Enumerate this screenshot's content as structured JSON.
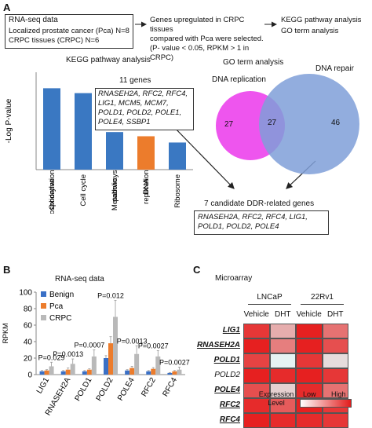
{
  "panels": {
    "a": "A",
    "b": "B",
    "c": "C"
  },
  "workflow": {
    "box1_title": "RNA-seq data",
    "box1_line2": "Localized prostate cancer (Pca) N=8",
    "box1_line3": "CRPC tissues (CRPC)  N=6",
    "step2_line1": "Genes upregulated in CRPC tissues",
    "step2_line2": "compared with Pca were selected.",
    "step2_line3": "(P- value < 0.05, RPKM > 1 in CRPC)",
    "step3_line1": "KEGG pathway analysis",
    "step3_line2": "GO term analysis"
  },
  "kegg_title": "KEGG pathway analysis",
  "genes_label": "11 genes",
  "genes_box": [
    "RNASEH2A, RFC2, RFC4,",
    "LIG1, MCM5, MCM7,",
    "POLD1, POLD2, POLE1,",
    "POLE4, SSBP1"
  ],
  "go_title": "GO term analysis",
  "venn": {
    "left_label": "DNA replication",
    "right_label": "DNA repair",
    "left_only": "27",
    "overlap": "27",
    "right_only": "46",
    "left_color": "#ee55ee",
    "right_color": "#7f9fd8"
  },
  "candidate_label": "7 candidate DDR-related genes",
  "candidate_box": [
    "RNASEH2A, RFC2, RFC4, LIG1,",
    "POLD1, POLD2, POLE4"
  ],
  "chart_data": [
    {
      "type": "bar",
      "panel": "A",
      "ylabel": "-Log P-value",
      "ylim": [
        0,
        14
      ],
      "categories": [
        "Oxidative phosphorylation",
        "Cell cycle",
        "Metabolic pathways",
        "DNA replication",
        "Ribosome"
      ],
      "values": [
        11.7,
        11.0,
        5.4,
        4.8,
        3.9
      ],
      "colors": [
        "#3a78c2",
        "#3a78c2",
        "#3a78c2",
        "#ec7c2c",
        "#3a78c2"
      ]
    },
    {
      "type": "bar",
      "panel": "B",
      "title": "RNA-seq data",
      "ylabel": "RPKM",
      "ylim": [
        0,
        100
      ],
      "yticks": [
        0,
        20,
        40,
        60,
        80,
        100
      ],
      "categories": [
        "LIG1",
        "RNASEH2A",
        "POLD1",
        "POLD2",
        "POLE4",
        "RFC2",
        "RFC4"
      ],
      "series": [
        {
          "name": "Benign",
          "color": "#3a70c6",
          "values": [
            4,
            4,
            4,
            20,
            5,
            4,
            2
          ],
          "errors": [
            1,
            1,
            1,
            3,
            1,
            1,
            0.5
          ]
        },
        {
          "name": "Pca",
          "color": "#ec7c2c",
          "values": [
            5,
            6,
            6,
            38,
            8,
            7,
            4
          ],
          "errors": [
            1,
            2,
            1,
            8,
            2,
            1.5,
            1
          ]
        },
        {
          "name": "CRPC",
          "color": "#b9b9b9",
          "values": [
            10,
            13,
            22,
            70,
            25,
            22,
            6
          ],
          "errors": [
            5,
            6,
            8,
            20,
            10,
            7,
            3
          ]
        }
      ],
      "pvalues": [
        "P=0.029",
        "P=0.0013",
        "P=0.0007",
        "P=0.012",
        "P=0.0013",
        "P=0.0027",
        "P=0.0027"
      ]
    },
    {
      "type": "heatmap",
      "panel": "C",
      "title": "Microarray",
      "groups": [
        "LNCaP",
        "22Rv1"
      ],
      "columns": [
        "Vehicle",
        "DHT",
        "Vehicle",
        "DHT"
      ],
      "rows": [
        "LIG1",
        "RNASEH2A",
        "POLD1",
        "POLD2",
        "POLE4",
        "RFC2",
        "RFC4"
      ],
      "underlined_rows": [
        "LIG1",
        "RNASEH2A",
        "POLD1",
        "POLE4",
        "RFC2",
        "RFC4"
      ],
      "values": [
        [
          0.85,
          0.35,
          0.95,
          0.6
        ],
        [
          0.95,
          0.55,
          0.95,
          0.75
        ],
        [
          0.8,
          0.05,
          0.85,
          0.15
        ],
        [
          0.95,
          0.9,
          0.95,
          0.85
        ],
        [
          0.75,
          0.2,
          0.9,
          0.6
        ],
        [
          0.9,
          0.7,
          0.95,
          0.85
        ],
        [
          0.95,
          0.9,
          0.9,
          0.85
        ]
      ],
      "legend": {
        "title": "Expression Level",
        "low": "Low",
        "high": "High"
      }
    }
  ]
}
